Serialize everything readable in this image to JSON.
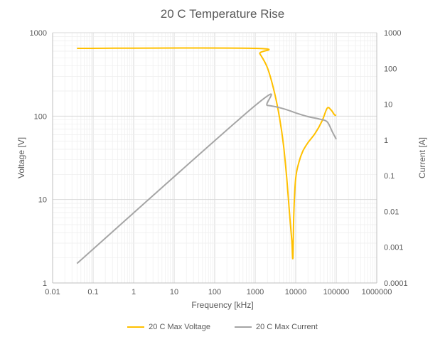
{
  "colors": {
    "voltage": "#FFC000",
    "current": "#A5A5A5",
    "grid_major": "#D9D9D9",
    "grid_minor": "#EEEEEE",
    "text": "#595959"
  },
  "chart_data": {
    "type": "line",
    "title": "20 C Temperature Rise",
    "xlabel": "Frequency [kHz]",
    "ylabel": "Voltage [V]",
    "y2label": "Current [A]",
    "xscale": "log",
    "yscale": "log",
    "y2scale": "log",
    "xlim": [
      0.01,
      1000000
    ],
    "ylim": [
      1,
      1000
    ],
    "y2lim": [
      0.0001,
      1000
    ],
    "grid": "major and minor",
    "legend_position": "bottom",
    "x_tick_labels": [
      "0.01",
      "0.1",
      "1",
      "10",
      "100",
      "1000",
      "10000",
      "100000",
      "1000000"
    ],
    "y_tick_labels": [
      "1",
      "10",
      "100",
      "1000"
    ],
    "y2_tick_labels": [
      "0.0001",
      "0.001",
      "0.01",
      "0.1",
      "1",
      "10",
      "100",
      "1000"
    ],
    "series": [
      {
        "name": "20 C Max Voltage",
        "axis": "left",
        "x": [
          0.04,
          1000,
          1300,
          2000,
          3000,
          4000,
          5000,
          6000,
          7000,
          8000,
          8500,
          9000,
          10000,
          12000,
          15000,
          20000,
          30000,
          45000,
          60000,
          75000,
          90000,
          100000
        ],
        "y": [
          650,
          650,
          560,
          380,
          190,
          95,
          45,
          18,
          7,
          3.2,
          2,
          7,
          18,
          28,
          38,
          48,
          62,
          88,
          125,
          118,
          104,
          102
        ]
      },
      {
        "name": "20 C Max Current",
        "axis": "right",
        "x": [
          0.04,
          1000,
          2000,
          5000,
          10000,
          20000,
          40000,
          60000,
          80000,
          100000
        ],
        "y": [
          0.00035,
          9.2,
          9.3,
          7.5,
          5.7,
          4.5,
          3.8,
          3.2,
          1.7,
          1.05
        ]
      }
    ]
  }
}
